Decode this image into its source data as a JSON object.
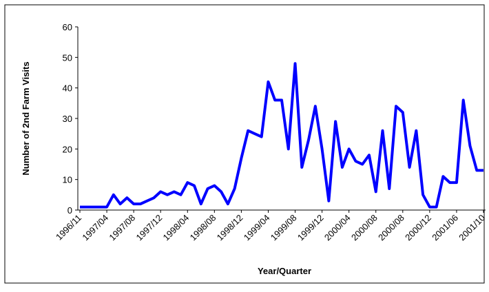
{
  "chart_data": {
    "type": "line",
    "x_label": "Year/Quarter",
    "y_label": "Number of 2nd Farm Visits",
    "categories": [
      "1996/11",
      null,
      null,
      null,
      "1997/04",
      null,
      null,
      null,
      "1997/08",
      null,
      null,
      null,
      "1997/12",
      null,
      null,
      null,
      "1998/04",
      null,
      null,
      null,
      "1998/08",
      null,
      null,
      null,
      "1998/12",
      null,
      null,
      null,
      "1999/04",
      null,
      null,
      null,
      "1999/08",
      null,
      null,
      null,
      "1999/12",
      null,
      null,
      null,
      "2000/04",
      null,
      null,
      null,
      "2000/08",
      null,
      null,
      null,
      "2000/08",
      null,
      null,
      null,
      "2000/12",
      null,
      null,
      null,
      "2001/06",
      null,
      null,
      null,
      "2001/10"
    ],
    "values": [
      1,
      1,
      1,
      1,
      1,
      5,
      2,
      4,
      2,
      2,
      3,
      4,
      6,
      5,
      6,
      5,
      9,
      8,
      2,
      7,
      8,
      6,
      2,
      7,
      17,
      26,
      25,
      24,
      42,
      36,
      36,
      20,
      48,
      14,
      23,
      34,
      20,
      3,
      29,
      14,
      20,
      16,
      15,
      18,
      6,
      26,
      7,
      34,
      32,
      14,
      26,
      5,
      1,
      1,
      11,
      9,
      9,
      36,
      21,
      13,
      13
    ],
    "color": "#0000ff",
    "ylim": [
      0,
      60
    ],
    "yticks": [
      0,
      10,
      20,
      30,
      40,
      50,
      60
    ],
    "grid": false
  }
}
